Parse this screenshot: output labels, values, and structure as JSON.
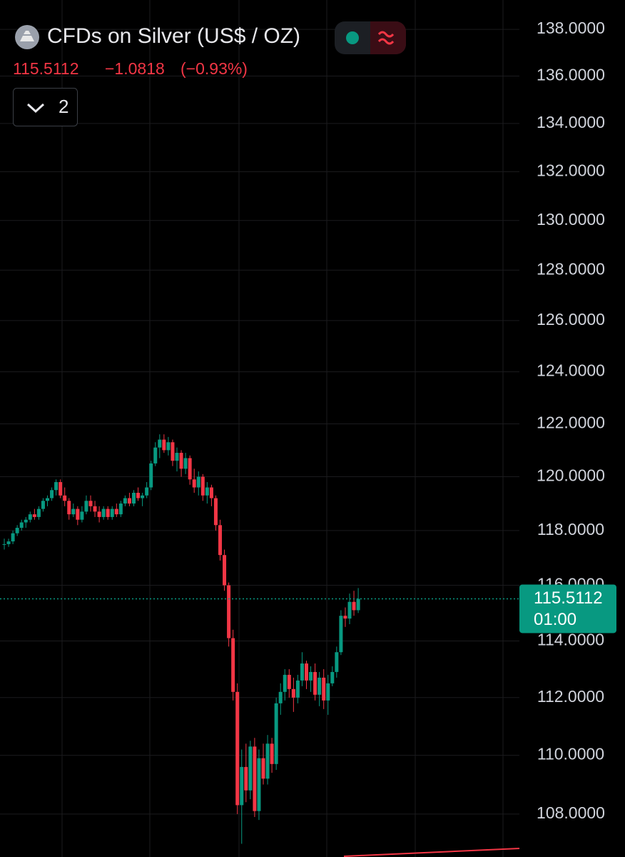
{
  "chart_data": {
    "type": "candlestick",
    "title": "CFDs on Silver (US$ / OZ)",
    "last_price": 115.5112,
    "change": {
      "value": -1.0818,
      "label": "−1.0818"
    },
    "change_pct": {
      "value": -0.93,
      "label": "(−0.93%)"
    },
    "indicator_count": 2,
    "countdown": "01:00",
    "log_scale": true,
    "grid": true,
    "up_color": "#089981",
    "down_color": "#f23645",
    "ylim": [
      106.56,
      139.27
    ],
    "yticks": [
      {
        "value": 108,
        "label": "108.0000"
      },
      {
        "value": 110,
        "label": "110.0000"
      },
      {
        "value": 112,
        "label": "112.0000"
      },
      {
        "value": 114,
        "label": "114.0000"
      },
      {
        "value": 116,
        "label": "116.0000"
      },
      {
        "value": 118,
        "label": "118.0000"
      },
      {
        "value": 120,
        "label": "120.0000"
      },
      {
        "value": 122,
        "label": "122.0000"
      },
      {
        "value": 124,
        "label": "124.0000"
      },
      {
        "value": 126,
        "label": "126.0000"
      },
      {
        "value": 128,
        "label": "128.0000"
      },
      {
        "value": 130,
        "label": "130.0000"
      },
      {
        "value": 132,
        "label": "132.0000"
      },
      {
        "value": 134,
        "label": "134.0000"
      },
      {
        "value": 136,
        "label": "136.0000"
      },
      {
        "value": 138,
        "label": "138.0000"
      }
    ],
    "open": [
      117.5,
      117.5,
      117.6,
      117.9,
      118.1,
      118.3,
      118.4,
      118.6,
      118.5,
      118.8,
      119.1,
      119.2,
      119.5,
      119.8,
      119.3,
      119.1,
      118.6,
      118.8,
      118.4,
      118.7,
      119.1,
      118.9,
      118.7,
      118.5,
      118.8,
      118.5,
      118.8,
      118.6,
      119.0,
      119.2,
      119.0,
      119.4,
      119.2,
      119.3,
      119.6,
      120.5,
      121.1,
      121.4,
      121.0,
      121.3,
      120.6,
      120.9,
      120.3,
      120.7,
      119.9,
      119.6,
      120.0,
      119.3,
      119.6,
      119.2,
      118.2,
      117.1,
      116.0,
      114.1,
      112.2,
      108.3,
      109.6,
      108.8,
      110.3,
      108.1,
      109.9,
      109.2,
      110.4,
      109.7,
      111.8,
      112.2,
      112.8,
      112.3,
      112.0,
      112.6,
      113.2,
      112.6,
      112.9,
      112.1,
      112.7,
      111.9,
      112.5,
      112.9,
      113.6,
      114.9,
      114.8,
      115.4,
      115.1
    ],
    "high": [
      117.7,
      117.7,
      118.0,
      118.2,
      118.4,
      118.5,
      118.7,
      118.8,
      118.9,
      119.2,
      119.3,
      119.6,
      119.9,
      119.9,
      119.6,
      119.2,
      119.0,
      118.9,
      118.9,
      119.3,
      119.3,
      119.1,
      118.9,
      118.9,
      118.9,
      118.9,
      119.0,
      119.1,
      119.3,
      119.4,
      119.5,
      119.6,
      119.4,
      119.8,
      120.6,
      121.3,
      121.6,
      121.6,
      121.5,
      121.4,
      121.1,
      121.0,
      120.9,
      120.8,
      120.3,
      120.2,
      120.1,
      119.8,
      119.7,
      119.3,
      118.4,
      117.3,
      116.1,
      114.4,
      112.5,
      110.2,
      110.4,
      110.5,
      110.6,
      110.2,
      110.4,
      110.7,
      110.6,
      112.0,
      112.5,
      113.0,
      113.0,
      112.7,
      112.8,
      113.6,
      113.3,
      113.1,
      113.2,
      112.9,
      113.0,
      112.8,
      113.1,
      113.8,
      115.1,
      115.2,
      115.7,
      115.8,
      115.9
    ],
    "low": [
      117.3,
      117.4,
      117.5,
      117.8,
      118.0,
      118.1,
      118.3,
      118.4,
      118.4,
      118.7,
      118.9,
      119.1,
      119.3,
      119.2,
      118.9,
      118.4,
      118.5,
      118.2,
      118.3,
      118.6,
      118.7,
      118.5,
      118.3,
      118.4,
      118.4,
      118.4,
      118.5,
      118.5,
      118.9,
      118.9,
      118.9,
      119.1,
      118.9,
      119.2,
      119.5,
      120.4,
      120.7,
      120.9,
      120.8,
      120.4,
      120.2,
      120.0,
      120.1,
      119.7,
      119.4,
      119.3,
      119.1,
      119.0,
      118.9,
      118.0,
      116.9,
      115.8,
      113.8,
      111.9,
      108.0,
      107.0,
      108.4,
      108.5,
      107.9,
      107.8,
      109.0,
      109.0,
      109.4,
      109.5,
      111.4,
      111.9,
      112.0,
      111.5,
      111.8,
      112.4,
      112.3,
      112.2,
      111.9,
      111.7,
      111.6,
      111.4,
      112.4,
      112.7,
      113.5,
      114.5,
      114.6,
      114.9,
      115.0
    ],
    "close": [
      117.5,
      117.6,
      117.9,
      118.1,
      118.3,
      118.4,
      118.6,
      118.5,
      118.8,
      119.1,
      119.2,
      119.5,
      119.8,
      119.3,
      119.1,
      118.6,
      118.8,
      118.4,
      118.7,
      119.1,
      118.9,
      118.7,
      118.5,
      118.8,
      118.5,
      118.8,
      118.6,
      119.0,
      119.2,
      119.0,
      119.4,
      119.2,
      119.3,
      119.6,
      120.5,
      121.1,
      121.4,
      121.0,
      121.3,
      120.6,
      120.9,
      120.3,
      120.7,
      119.9,
      119.6,
      120.0,
      119.3,
      119.6,
      119.2,
      118.2,
      117.1,
      116.0,
      114.1,
      112.2,
      108.3,
      109.6,
      108.8,
      110.3,
      108.1,
      109.9,
      109.2,
      110.4,
      109.7,
      111.8,
      112.2,
      112.8,
      112.3,
      112.0,
      112.6,
      113.2,
      112.6,
      112.9,
      112.1,
      112.7,
      111.9,
      112.5,
      112.9,
      113.6,
      114.9,
      114.8,
      115.4,
      115.1,
      115.5112
    ]
  }
}
